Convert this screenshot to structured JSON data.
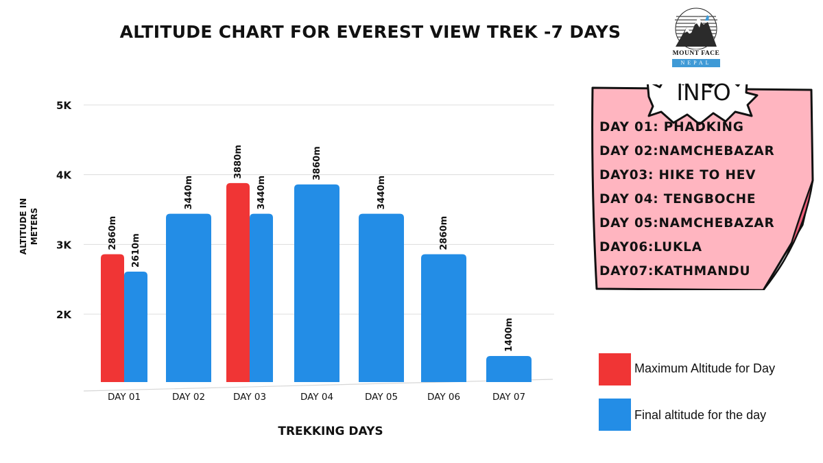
{
  "chart_data": {
    "type": "bar",
    "title": "ALTITUDE CHART FOR EVEREST VIEW TREK -7 DAYS",
    "xlabel": "TREKKING DAYS",
    "ylabel": "ALTITUDE IN METERS",
    "categories": [
      "DAY 01",
      "DAY 02",
      "DAY 03",
      "DAY 04",
      "DAY 05",
      "DAY 06",
      "DAY 07"
    ],
    "y_ticks": [
      {
        "value": 2000,
        "label": "2K"
      },
      {
        "value": 3000,
        "label": "3K"
      },
      {
        "value": 4000,
        "label": "4K"
      },
      {
        "value": 5000,
        "label": "5K"
      }
    ],
    "grid": true,
    "series": [
      {
        "name": "Maximum Altitude for Day",
        "color": "#f03535",
        "values": [
          2860,
          null,
          3880,
          null,
          null,
          null,
          null
        ],
        "labels": [
          "2860m",
          "",
          "3880m",
          "",
          "",
          "",
          ""
        ]
      },
      {
        "name": "Final altitude for the day",
        "color": "#238de6",
        "values": [
          2610,
          3440,
          3440,
          3860,
          3440,
          2860,
          1400
        ],
        "labels": [
          "2610m",
          "3440m",
          "3440m",
          "3860m",
          "3440m",
          "2860m",
          "1400m"
        ]
      }
    ],
    "legend_position": "bottom-right"
  },
  "logo": {
    "name": "MOUNT FACE",
    "sub": "NEPAL"
  },
  "info": {
    "title": "INFO",
    "items": [
      "DAY 01: PHADKING",
      "DAY 02:NAMCHEBAZAR",
      "DAY03: HIKE TO HEV",
      "DAY 04: TENGBOCHE",
      "DAY 05:NAMCHEBAZAR",
      "DAY06:LUKLA",
      "DAY07:KATHMANDU"
    ],
    "fill_color": "#ffb5c0",
    "curl_color": "#ef5f7a"
  }
}
